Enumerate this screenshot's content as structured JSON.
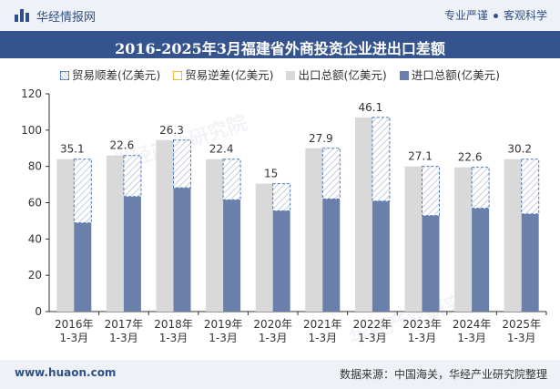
{
  "header": {
    "brand": "华经情报网",
    "slogan_left": "专业严谨",
    "slogan_right": "客观科学"
  },
  "footer": {
    "url": "www.huaon.com",
    "source": "数据来源：中国海关，华经产业研究院整理"
  },
  "watermark": "华经产业研究院",
  "colors": {
    "export": "#d9d9d9",
    "import": "#6b7fab",
    "surplus_border": "#4a7ab7",
    "deficit_border": "#e2b52b",
    "header_band": "#35548e"
  },
  "chart_data": {
    "type": "bar",
    "title": "2016-2025年3月福建省外商投资企业进出口差额",
    "legend": [
      "贸易顺差(亿美元)",
      "贸易逆差(亿美元)",
      "出口总额(亿美元)",
      "进口总额(亿美元)"
    ],
    "legend_position": "top",
    "categories": [
      "2016年\n1-3月",
      "2017年\n1-3月",
      "2018年\n1-3月",
      "2019年\n1-3月",
      "2020年\n1-3月",
      "2021年\n1-3月",
      "2022年\n1-3月",
      "2023年\n1-3月",
      "2024年\n1-3月",
      "2025年\n1-3月"
    ],
    "series": [
      {
        "name": "出口总额(亿美元)",
        "values": [
          84,
          86,
          94.5,
          84,
          70.5,
          90,
          107,
          80,
          79.5,
          84
        ]
      },
      {
        "name": "进口总额(亿美元)",
        "values": [
          48.9,
          63.4,
          68.2,
          61.6,
          55.5,
          62.1,
          60.9,
          52.9,
          56.9,
          53.8
        ]
      },
      {
        "name": "贸易顺差(亿美元)",
        "values": [
          35.1,
          22.6,
          26.3,
          22.4,
          15,
          27.9,
          46.1,
          27.1,
          22.6,
          30.2
        ]
      }
    ],
    "ylim": [
      0,
      120
    ],
    "yticks": [
      0,
      20,
      40,
      60,
      80,
      100,
      120
    ],
    "grid": false
  }
}
